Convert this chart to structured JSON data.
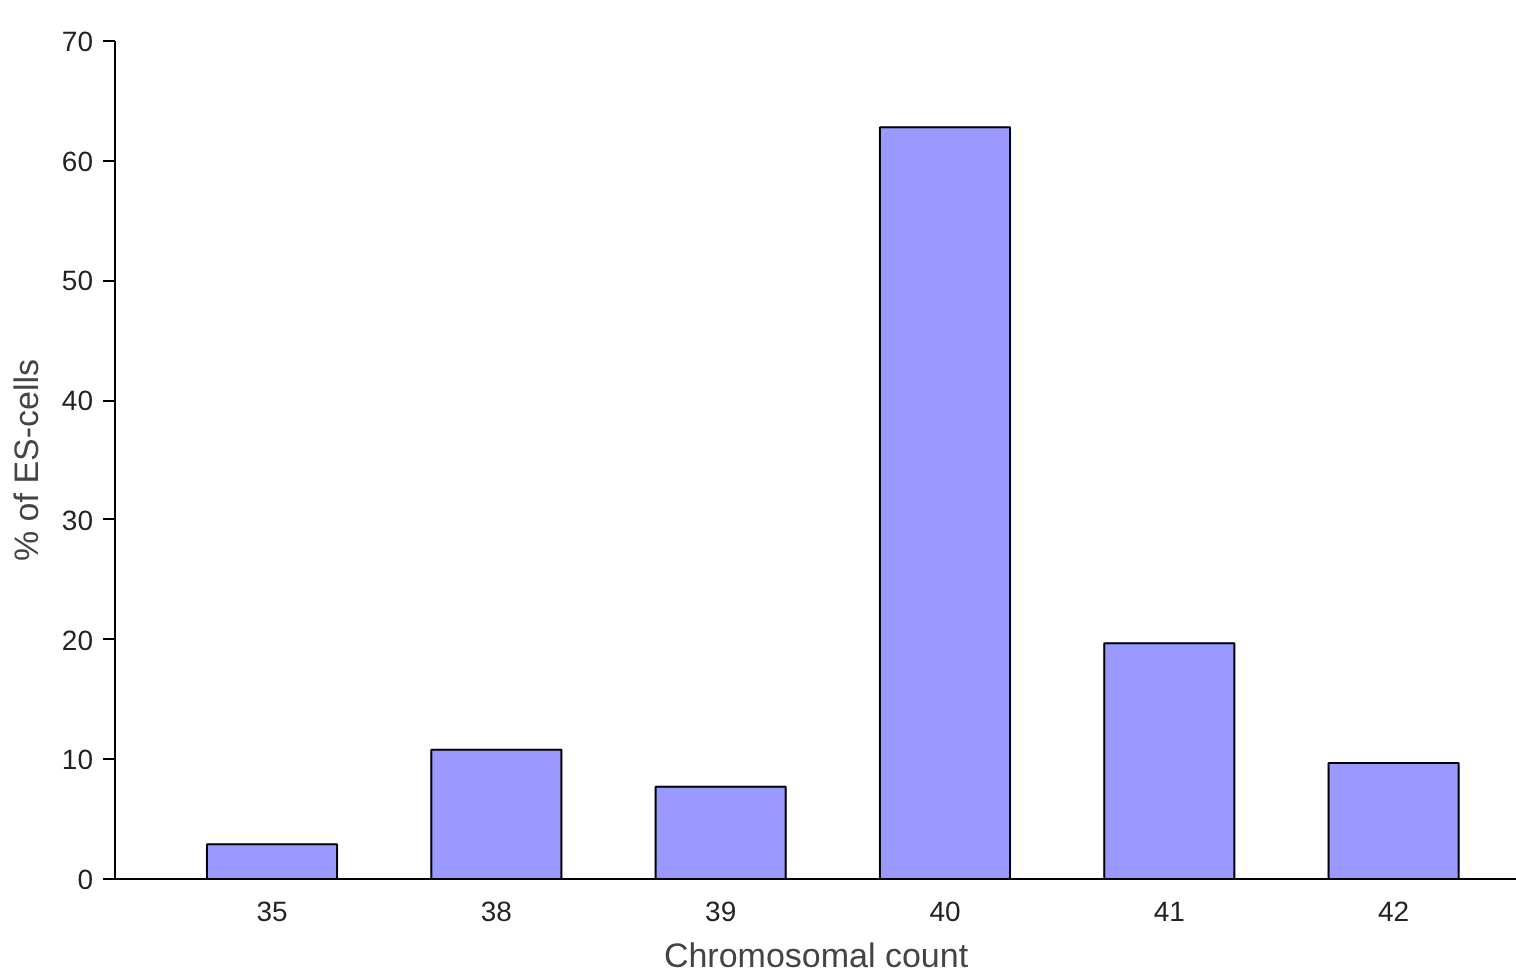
{
  "chart_data": {
    "type": "bar",
    "xlabel": "Chromosomal count",
    "ylabel": "% of ES-cells",
    "categories": [
      "35",
      "38",
      "39",
      "40",
      "41",
      "42"
    ],
    "values": [
      2.9,
      10.8,
      7.7,
      62.8,
      19.7,
      9.7
    ],
    "color": "#9999ff",
    "ylim": [
      0,
      70
    ],
    "yticks": [
      0,
      10,
      20,
      30,
      40,
      50,
      60,
      70
    ],
    "grid": false
  }
}
